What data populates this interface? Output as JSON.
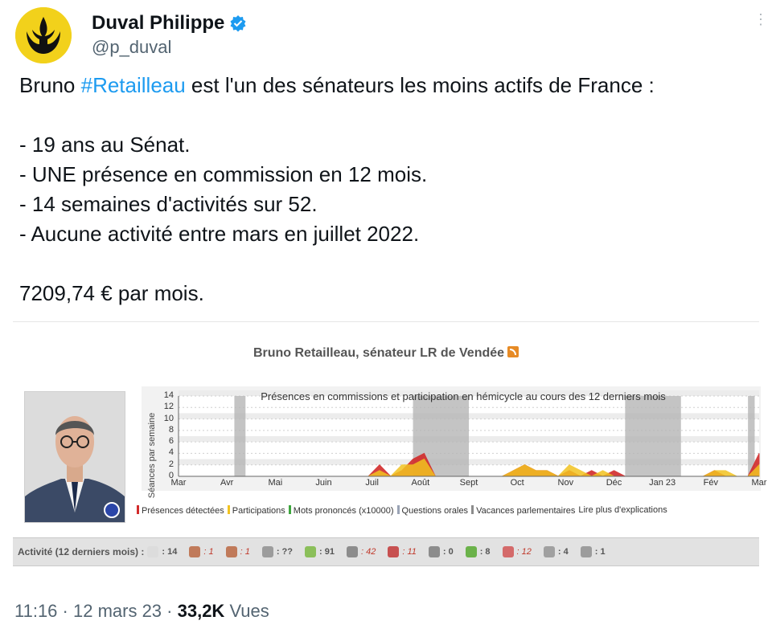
{
  "author": {
    "display_name": "Duval Philippe",
    "handle": "@p_duval",
    "avatar_icon": "rebel-alliance-icon",
    "verified_icon": "verified-badge-icon",
    "verified_color": "#1d9bf0"
  },
  "tweet": {
    "line1_before": "Bruno ",
    "line1_hashtag": "#Retailleau",
    "line1_after": " est l'un des sénateurs les moins actifs de France :",
    "bullets": [
      "- 19 ans au Sénat.",
      "- UNE présence en commission en 12 mois.",
      "- 14 semaines d'activités sur 52.",
      "- Aucune activité entre mars en juillet 2022."
    ],
    "salary": "7209,74 € par mois."
  },
  "card": {
    "title": "Bruno Retailleau, sénateur LR de Vendée",
    "rss_icon": "rss-icon",
    "legend": [
      {
        "label": "Présences détectées",
        "color": "#d22b2b"
      },
      {
        "label": "Participations",
        "color": "#f2c320"
      },
      {
        "label": "Mots prononcés (x10000)",
        "color": "#3da63d"
      },
      {
        "label": "Questions orales",
        "color": "#9aa3b5"
      },
      {
        "label": "Vacances parlementaires",
        "color": "#8c8c8c"
      },
      {
        "label": "Lire plus d'explications",
        "color": ""
      }
    ],
    "activity_label": "Activité (12 derniers mois) :",
    "activity": [
      {
        "icon": "calendar-icon",
        "value": ": 14",
        "red": false
      },
      {
        "icon": "speaker-icon",
        "value": ": 1",
        "red": true
      },
      {
        "icon": "people-icon",
        "value": ": 1",
        "red": true
      },
      {
        "icon": "phone-icon",
        "value": ": ??",
        "red": false
      },
      {
        "icon": "document-icon",
        "value": ": 91",
        "red": false
      },
      {
        "icon": "amendment-icon",
        "value": ": 42",
        "red": true
      },
      {
        "icon": "report-icon",
        "value": ": 11",
        "red": true
      },
      {
        "icon": "proposal-icon",
        "value": ": 0",
        "red": false
      },
      {
        "icon": "question-icon",
        "value": ": 8",
        "red": false
      },
      {
        "icon": "group-icon",
        "value": ": 12",
        "red": true
      },
      {
        "icon": "pen-icon",
        "value": ": 4",
        "red": false
      },
      {
        "icon": "circle-icon",
        "value": ": 1",
        "red": false
      }
    ]
  },
  "chart_data": {
    "type": "area",
    "title": "Présences en commissions et participation en hémicycle au cours des 12 derniers mois",
    "ylabel": "Séances par semaine",
    "ylim": [
      0,
      14
    ],
    "yticks": [
      0,
      2,
      4,
      6,
      8,
      10,
      12,
      14
    ],
    "x_labels": [
      "Mar",
      "Avr",
      "Mai",
      "Juin",
      "Juil",
      "Août",
      "Sept",
      "Oct",
      "Nov",
      "Déc",
      "Jan 23",
      "Fév",
      "Mar"
    ],
    "weeks": 52,
    "vacation_weeks": [
      [
        5,
        6
      ],
      [
        21,
        26
      ],
      [
        40,
        45
      ],
      [
        51,
        51.6
      ]
    ],
    "series": [
      {
        "name": "Présences détectées",
        "color": "#d22b2b",
        "points": [
          [
            17,
            0
          ],
          [
            18,
            2
          ],
          [
            19,
            0
          ],
          [
            20,
            1
          ],
          [
            21,
            3
          ],
          [
            22,
            4
          ],
          [
            23,
            0
          ],
          [
            29,
            0
          ],
          [
            30,
            1
          ],
          [
            31,
            2
          ],
          [
            32,
            1
          ],
          [
            33,
            1
          ],
          [
            34,
            0
          ],
          [
            35,
            1
          ],
          [
            36,
            0
          ],
          [
            37,
            1
          ],
          [
            38,
            0
          ],
          [
            39,
            1
          ],
          [
            40,
            0
          ],
          [
            47,
            0
          ],
          [
            48,
            1
          ],
          [
            49,
            0
          ],
          [
            50,
            0
          ],
          [
            51,
            0
          ],
          [
            52,
            4
          ]
        ]
      },
      {
        "name": "Participations",
        "color": "#f2c320",
        "points": [
          [
            17,
            0
          ],
          [
            18,
            1
          ],
          [
            19,
            0
          ],
          [
            20,
            2
          ],
          [
            21,
            2
          ],
          [
            22,
            3
          ],
          [
            23,
            0
          ],
          [
            29,
            0
          ],
          [
            30,
            1
          ],
          [
            31,
            2
          ],
          [
            32,
            1
          ],
          [
            33,
            1
          ],
          [
            34,
            0
          ],
          [
            35,
            2
          ],
          [
            36,
            1
          ],
          [
            37,
            0
          ],
          [
            38,
            1
          ],
          [
            39,
            0
          ],
          [
            40,
            0
          ],
          [
            47,
            0
          ],
          [
            48,
            1
          ],
          [
            49,
            1
          ],
          [
            50,
            0
          ],
          [
            51,
            0
          ],
          [
            52,
            2
          ]
        ]
      }
    ]
  },
  "meta": {
    "time": "11:16",
    "date": "12 mars 23",
    "views": "33,2K",
    "views_label": "Vues"
  }
}
